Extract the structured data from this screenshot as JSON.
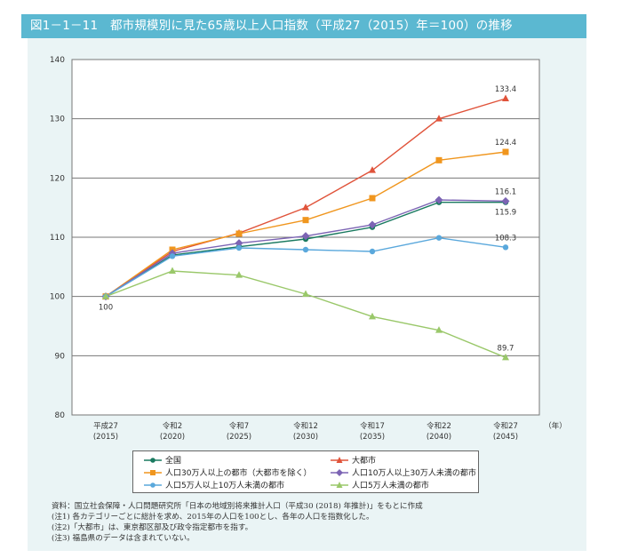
{
  "header": {
    "title": "図1－1－11　都市規模別に見た65歳以上人口指数（平成27（2015）年＝100）の推移",
    "accent": "#5bb8d1"
  },
  "chart_data": {
    "type": "line",
    "title": "都市規模別に見た65歳以上人口指数（平成27（2015）年＝100）の推移",
    "xlabel": "（年）",
    "ylabel": "",
    "ylim": [
      80,
      140
    ],
    "yticks": [
      80,
      90,
      100,
      110,
      120,
      130,
      140
    ],
    "grid": true,
    "legend_position": "bottom",
    "categories": [
      {
        "line1": "平成27",
        "line2": "(2015)"
      },
      {
        "line1": "令和2",
        "line2": "(2020)"
      },
      {
        "line1": "令和7",
        "line2": "(2025)"
      },
      {
        "line1": "令和12",
        "line2": "(2030)"
      },
      {
        "line1": "令和17",
        "line2": "(2035)"
      },
      {
        "line1": "令和22",
        "line2": "(2040)"
      },
      {
        "line1": "令和27",
        "line2": "(2045)"
      }
    ],
    "series": [
      {
        "name": "全国",
        "color": "#1a7a60",
        "marker": "circle",
        "values": [
          100,
          107.0,
          108.4,
          109.7,
          111.7,
          115.9,
          115.9
        ],
        "end_label": "115.9",
        "end_label_pos": "below"
      },
      {
        "name": "大都市",
        "color": "#e0533a",
        "marker": "triangle",
        "values": [
          100,
          107.6,
          110.7,
          115.0,
          121.3,
          130.0,
          133.4
        ],
        "end_label": "133.4",
        "end_label_pos": "above"
      },
      {
        "name": "人口30万人以上の都市（大都市を除く）",
        "color": "#f0961e",
        "marker": "square",
        "values": [
          100,
          107.9,
          110.6,
          112.9,
          116.6,
          123.0,
          124.4
        ],
        "end_label": "124.4",
        "end_label_pos": "above"
      },
      {
        "name": "人口10万人以上30万人未満の都市",
        "color": "#7c64b4",
        "marker": "diamond",
        "values": [
          100,
          107.3,
          109.0,
          110.2,
          112.1,
          116.3,
          116.1
        ],
        "end_label": "116.1",
        "end_label_pos": "above"
      },
      {
        "name": "人口5万人以上10万人未満の都市",
        "color": "#5aa8dc",
        "marker": "circle",
        "values": [
          100,
          106.8,
          108.2,
          107.9,
          107.6,
          109.9,
          108.3
        ],
        "end_label": "108.3",
        "end_label_pos": "above"
      },
      {
        "name": "人口5万人未満の都市",
        "color": "#9ac86a",
        "marker": "triangle",
        "values": [
          100,
          104.3,
          103.6,
          100.4,
          96.6,
          94.3,
          89.7
        ],
        "end_label": "89.7",
        "end_label_pos": "above"
      }
    ],
    "start_label": "100"
  },
  "notes": [
    "資料：国立社会保障・人口問題研究所「日本の地域別将来推計人口（平成30 (2018) 年推計)」をもとに作成",
    "(注1) 各カテゴリーごとに総計を求め、2015年の人口を100とし、各年の人口を指数化した。",
    "(注2)「大都市」は、東京都区部及び政令指定都市を指す。",
    "(注3) 福島県のデータは含まれていない。"
  ]
}
